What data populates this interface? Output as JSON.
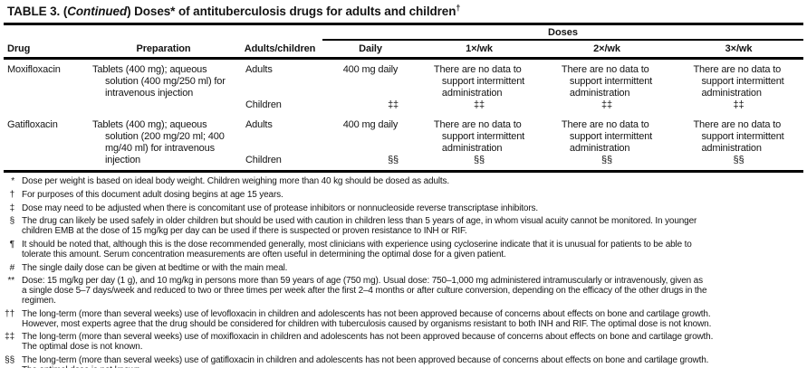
{
  "title": {
    "prefix": "TABLE 3. (",
    "continued": "Continued",
    "suffix": ") Doses* of antituberculosis drugs for adults and children",
    "superscript": "†"
  },
  "table": {
    "doses_group_header": "Doses",
    "columns": {
      "drug": "Drug",
      "preparation": "Preparation",
      "adults_children": "Adults/children",
      "daily": "Daily",
      "wk1": "1×/wk",
      "wk2": "2×/wk",
      "wk3": "3×/wk"
    },
    "rows": [
      {
        "drug": "Moxifloxacin",
        "preparation": "Tablets (400 mg); aqueous\nsolution (400 mg/250 ml) for\nintravenous injection",
        "adults_label": "Adults",
        "children_label": "Children",
        "adults": {
          "daily": "400 mg daily",
          "wk1": "There are no data to\nsupport intermittent\nadministration",
          "wk2": "There are no data to\nsupport intermittent\nadministration",
          "wk3": "There are no data to\nsupport intermittent\nadministration"
        },
        "children": {
          "daily": "‡‡",
          "wk1": "‡‡",
          "wk2": "‡‡",
          "wk3": "‡‡"
        }
      },
      {
        "drug": "Gatifloxacin",
        "preparation": "Tablets (400 mg); aqueous\nsolution (200 mg/20 ml; 400\nmg/40 ml) for intravenous\ninjection",
        "adults_label": "Adults",
        "children_label": "Children",
        "adults": {
          "daily": "400 mg daily",
          "wk1": "There are no data to\nsupport intermittent\nadministration",
          "wk2": "There are no data to\nsupport intermittent\nadministration",
          "wk3": "There are no data to\nsupport intermittent\nadministration"
        },
        "children": {
          "daily": "§§",
          "wk1": "§§",
          "wk2": "§§",
          "wk3": "§§"
        }
      }
    ]
  },
  "footnotes": [
    {
      "marker": "*",
      "text": "Dose per weight is based on ideal body weight. Children weighing more than 40 kg should be dosed as adults."
    },
    {
      "marker": "†",
      "text": "For purposes of this document adult dosing begins at age 15 years."
    },
    {
      "marker": "‡",
      "text": "Dose may need to be adjusted when there is concomitant use of protease inhibitors or nonnucleoside reverse transcriptase inhibitors."
    },
    {
      "marker": "§",
      "text": "The drug can likely be used safely in older children but should be used with caution in children less than 5 years of age, in whom visual acuity cannot be monitored. In younger\nchildren EMB at the dose of 15 mg/kg per day can be used if there is suspected or proven resistance to INH or RIF."
    },
    {
      "marker": "¶",
      "text": "It should be noted that, although this is the dose recommended generally, most clinicians with experience using cycloserine indicate that it is unusual for patients to be able to\ntolerate this amount. Serum concentration measurements are often useful in determining the optimal dose for a given patient."
    },
    {
      "marker": "#",
      "text": "The single daily dose can be given at bedtime or with the main meal."
    },
    {
      "marker": "**",
      "text": "Dose: 15 mg/kg per day (1 g), and 10 mg/kg in persons more than 59 years of age (750 mg). Usual dose: 750–1,000 mg administered intramuscularly or intravenously, given as\na single dose 5–7 days/week and reduced to two or three times per week after the first 2–4 months or after culture conversion, depending on the efficacy of the other drugs in the\nregimen."
    },
    {
      "marker": "††",
      "text": "The long-term (more than several weeks) use of levofloxacin in children and adolescents has not been approved because of concerns about effects on bone and cartilage growth.\nHowever, most experts agree that the drug should be considered for children with tuberculosis caused by organisms resistant to both INH and RIF. The optimal dose is not known."
    },
    {
      "marker": "‡‡",
      "text": "The long-term (more than several weeks) use of moxifloxacin in children and adolescents has not been approved because of concerns about effects on bone and cartilage growth.\nThe optimal dose is not known."
    },
    {
      "marker": "§§",
      "text": "The long-term (more than several weeks) use of gatifloxacin in children and adolescents has not been approved because of concerns about effects on bone and cartilage growth.\nThe optimal dose is not known."
    }
  ]
}
